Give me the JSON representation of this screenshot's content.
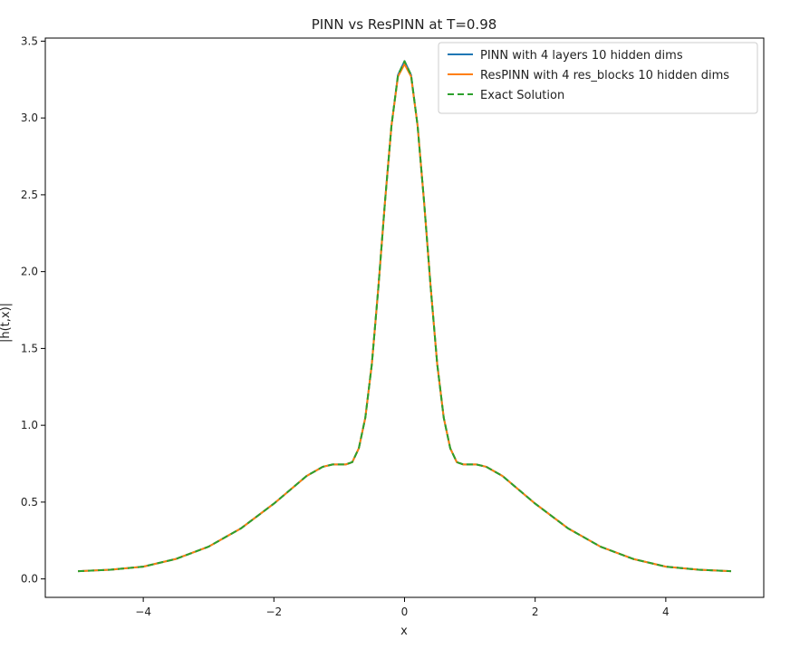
{
  "chart_data": {
    "type": "line",
    "title": "PINN vs ResPINN at T=0.98",
    "xlabel": "x",
    "ylabel": "|h(t,x)|",
    "xlim": [
      -5.5,
      5.5
    ],
    "ylim": [
      -0.12,
      3.52
    ],
    "xticks": [
      -4,
      -2,
      0,
      2,
      4
    ],
    "xtick_labels": [
      "−4",
      "−2",
      "0",
      "2",
      "4"
    ],
    "yticks": [
      0.0,
      0.5,
      1.0,
      1.5,
      2.0,
      2.5,
      3.0,
      3.5
    ],
    "ytick_labels": [
      "0.0",
      "0.5",
      "1.0",
      "1.5",
      "2.0",
      "2.5",
      "3.0",
      "3.5"
    ],
    "grid": false,
    "legend_position": "top-right",
    "x": [
      -5.0,
      -4.5,
      -4.0,
      -3.5,
      -3.0,
      -2.5,
      -2.0,
      -1.75,
      -1.5,
      -1.25,
      -1.1,
      -1.0,
      -0.9,
      -0.8,
      -0.7,
      -0.6,
      -0.5,
      -0.4,
      -0.3,
      -0.2,
      -0.1,
      0.0,
      0.1,
      0.2,
      0.3,
      0.4,
      0.5,
      0.6,
      0.7,
      0.8,
      0.9,
      1.0,
      1.1,
      1.25,
      1.5,
      1.75,
      2.0,
      2.5,
      3.0,
      3.5,
      4.0,
      4.5,
      5.0
    ],
    "series": [
      {
        "name": "PINN with 4 layers 10 hidden dims",
        "color": "#1f77b4",
        "style": "solid",
        "values": [
          0.05,
          0.06,
          0.08,
          0.13,
          0.21,
          0.33,
          0.49,
          0.58,
          0.67,
          0.73,
          0.745,
          0.745,
          0.745,
          0.76,
          0.85,
          1.05,
          1.4,
          1.9,
          2.45,
          2.95,
          3.28,
          3.37,
          3.28,
          2.95,
          2.45,
          1.9,
          1.4,
          1.05,
          0.85,
          0.76,
          0.745,
          0.745,
          0.745,
          0.73,
          0.67,
          0.58,
          0.49,
          0.33,
          0.21,
          0.13,
          0.08,
          0.06,
          0.05
        ]
      },
      {
        "name": "ResPINN with 4 res_blocks 10 hidden dims",
        "color": "#ff7f0e",
        "style": "solid",
        "values": [
          0.05,
          0.06,
          0.08,
          0.13,
          0.21,
          0.33,
          0.49,
          0.58,
          0.67,
          0.73,
          0.745,
          0.745,
          0.745,
          0.76,
          0.85,
          1.05,
          1.4,
          1.9,
          2.45,
          2.95,
          3.27,
          3.35,
          3.27,
          2.95,
          2.45,
          1.9,
          1.4,
          1.05,
          0.85,
          0.76,
          0.745,
          0.745,
          0.745,
          0.73,
          0.67,
          0.58,
          0.49,
          0.33,
          0.21,
          0.13,
          0.08,
          0.06,
          0.05
        ]
      },
      {
        "name": "Exact Solution",
        "color": "#2ca02c",
        "style": "dashed",
        "values": [
          0.05,
          0.06,
          0.08,
          0.13,
          0.21,
          0.33,
          0.49,
          0.58,
          0.67,
          0.73,
          0.745,
          0.745,
          0.745,
          0.76,
          0.85,
          1.05,
          1.4,
          1.9,
          2.45,
          2.95,
          3.28,
          3.37,
          3.28,
          2.95,
          2.45,
          1.9,
          1.4,
          1.05,
          0.85,
          0.76,
          0.745,
          0.745,
          0.745,
          0.73,
          0.67,
          0.58,
          0.49,
          0.33,
          0.21,
          0.13,
          0.08,
          0.06,
          0.05
        ]
      }
    ]
  }
}
